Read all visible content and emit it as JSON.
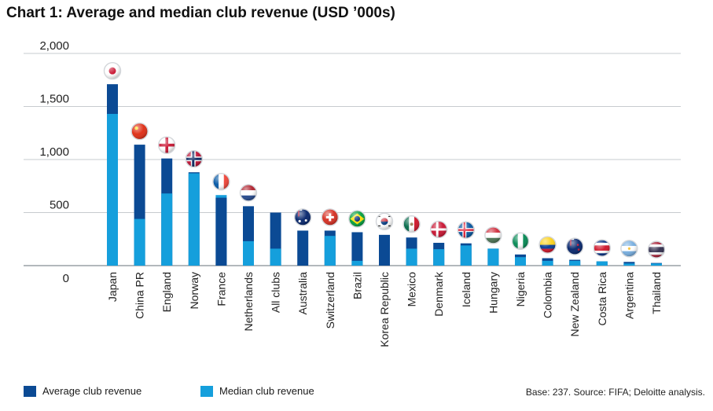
{
  "chart_data": {
    "type": "bar",
    "title": "Chart 1: Average and median club revenue (USD ’000s)",
    "ylim": [
      0,
      2000
    ],
    "yticks": [
      0,
      500,
      1000,
      1500,
      2000
    ],
    "ytick_labels": [
      "0",
      "500",
      "1,000",
      "1,500",
      "2,000"
    ],
    "grid": "horizontal",
    "categories": [
      "Japan",
      "China PR",
      "England",
      "Norway",
      "France",
      "Netherlands",
      "All clubs",
      "Australia",
      "Switzerland",
      "Brazil",
      "Korea Republic",
      "Mexico",
      "Denmark",
      "Iceland",
      "Hungary",
      "Nigeria",
      "Colombia",
      "New Zealand",
      "Costa Rica",
      "Argentina",
      "Thailand"
    ],
    "flags": [
      "japan-flag",
      "china-flag",
      "england-flag",
      "norway-flag",
      "france-flag",
      "netherlands-flag",
      "",
      "australia-flag",
      "switzerland-flag",
      "brazil-flag",
      "korea-flag",
      "mexico-flag",
      "denmark-flag",
      "iceland-flag",
      "hungary-flag",
      "nigeria-flag",
      "colombia-flag",
      "new-zealand-flag",
      "costa-rica-flag",
      "argentina-flag",
      "thailand-flag"
    ],
    "series": [
      {
        "name": "Average club revenue",
        "color": "#0b4a94",
        "values": [
          1710,
          1140,
          1010,
          880,
          640,
          560,
          500,
          330,
          330,
          315,
          290,
          265,
          215,
          210,
          160,
          105,
          70,
          55,
          40,
          35,
          25
        ]
      },
      {
        "name": "Median club revenue",
        "color": "#159fdc",
        "values": [
          1430,
          440,
          680,
          870,
          665,
          230,
          160,
          0,
          280,
          45,
          0,
          160,
          155,
          190,
          160,
          80,
          45,
          45,
          40,
          20,
          20
        ]
      }
    ],
    "legend": "bottom-left",
    "source": "Base: 237. Source: FIFA; Deloitte analysis."
  }
}
